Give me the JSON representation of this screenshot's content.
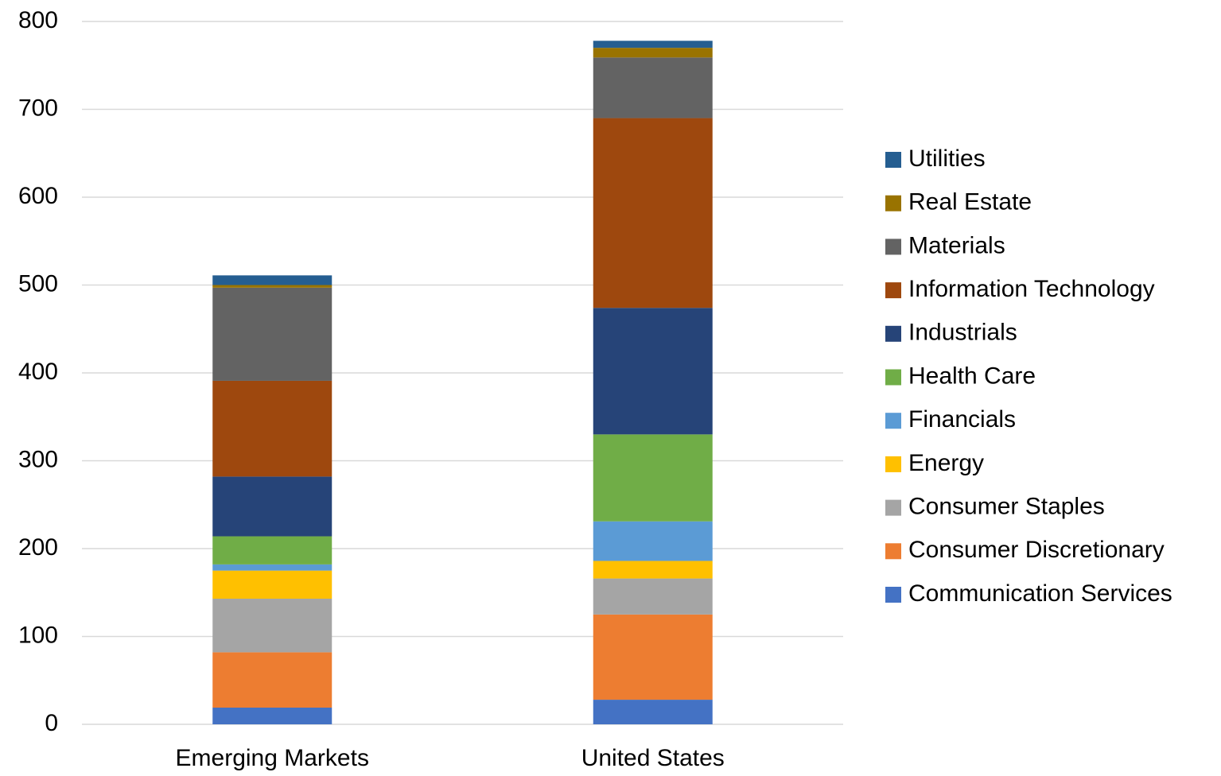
{
  "chart_data": {
    "type": "stacked_bar",
    "categories": [
      "Emerging Markets",
      "United States"
    ],
    "series": [
      {
        "name": "Communication Services",
        "color": "#4472c4",
        "values": [
          19,
          28
        ]
      },
      {
        "name": "Consumer Discretionary",
        "color": "#ed7d31",
        "values": [
          63,
          97
        ]
      },
      {
        "name": "Consumer Staples",
        "color": "#a5a5a5",
        "values": [
          61,
          41
        ]
      },
      {
        "name": "Energy",
        "color": "#ffc000",
        "values": [
          32,
          20
        ]
      },
      {
        "name": "Financials",
        "color": "#5b9bd5",
        "values": [
          7,
          45
        ]
      },
      {
        "name": "Health Care",
        "color": "#70ad47",
        "values": [
          32,
          99
        ]
      },
      {
        "name": "Industrials",
        "color": "#264478",
        "values": [
          68,
          144
        ]
      },
      {
        "name": "Information Technology",
        "color": "#9e480e",
        "values": [
          109,
          216
        ]
      },
      {
        "name": "Materials",
        "color": "#636363",
        "values": [
          106,
          69
        ]
      },
      {
        "name": "Real Estate",
        "color": "#997300",
        "values": [
          3,
          11
        ]
      },
      {
        "name": "Utilities",
        "color": "#255e91",
        "values": [
          11,
          8
        ]
      }
    ],
    "ylim": [
      0,
      800
    ],
    "yticks": [
      0,
      100,
      200,
      300,
      400,
      500,
      600,
      700,
      800
    ],
    "grid": true,
    "legend": "right"
  }
}
